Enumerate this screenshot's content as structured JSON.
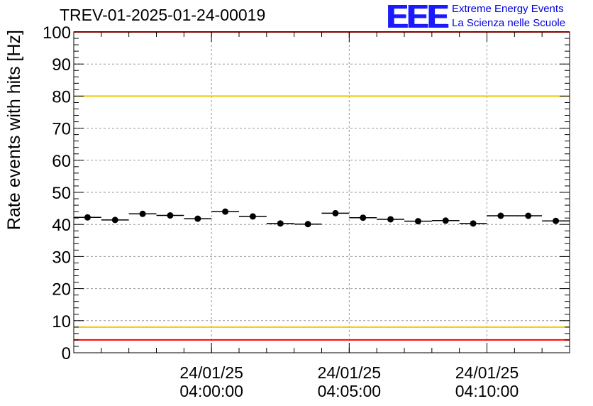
{
  "header": {
    "run_title": "TREV-01-2025-01-24-00019",
    "logo_letters": "EEE",
    "logo_line1": "Extreme Energy Events",
    "logo_line2": "La Scienza nelle Scuole"
  },
  "colors": {
    "red_threshold": "#ff0000",
    "yellow_threshold": "#f0c800",
    "marker": "#000000",
    "grid": "#9a9a9a",
    "logo": "#1a1aff"
  },
  "chart_data": {
    "type": "scatter",
    "title": "TREV-01-2025-01-24-00019",
    "xlabel": "",
    "ylabel": "Rate events with hits [Hz]",
    "ylim": [
      0,
      100
    ],
    "yticks": [
      0,
      10,
      20,
      30,
      40,
      50,
      60,
      70,
      80,
      90,
      100
    ],
    "x_range_minutes": [
      -5.0,
      13.0
    ],
    "x_ticks": [
      {
        "minute": 0,
        "date": "24/01/25",
        "time": "04:00:00"
      },
      {
        "minute": 5,
        "date": "24/01/25",
        "time": "04:05:00"
      },
      {
        "minute": 10,
        "date": "24/01/25",
        "time": "04:10:00"
      }
    ],
    "bin_width_minutes": 1.0,
    "bin_starts_minutes": [
      -5,
      -4,
      -3,
      -2,
      -1,
      0,
      1,
      2,
      3,
      4,
      5,
      6,
      7,
      8,
      9,
      10,
      11,
      12
    ],
    "values": [
      42.2,
      41.4,
      43.3,
      42.8,
      41.8,
      44.0,
      42.5,
      40.3,
      40.1,
      43.5,
      42.1,
      41.6,
      41.0,
      41.2,
      40.3,
      42.7,
      42.7,
      41.1
    ],
    "reference_lines": [
      {
        "value": 100,
        "color": "red"
      },
      {
        "value": 80,
        "color": "yellow"
      },
      {
        "value": 8,
        "color": "yellow"
      },
      {
        "value": 4,
        "color": "red"
      }
    ],
    "grid": true
  }
}
